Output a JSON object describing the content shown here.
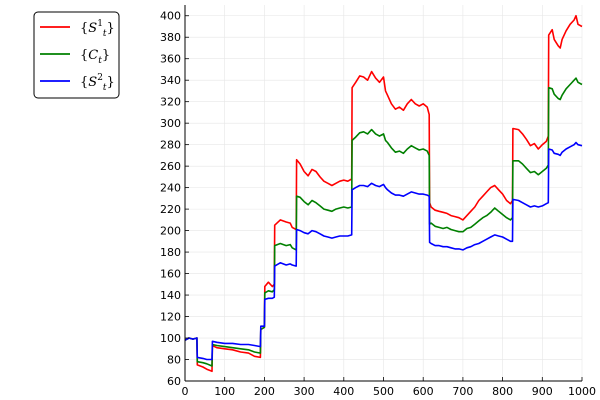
{
  "chart_data": {
    "type": "line",
    "title": "",
    "xlabel": "",
    "ylabel": "",
    "xlim": [
      0,
      1000
    ],
    "ylim": [
      60,
      410
    ],
    "xticks": [
      0,
      100,
      200,
      300,
      400,
      500,
      600,
      700,
      800,
      900,
      1000
    ],
    "yticks": [
      60,
      80,
      100,
      120,
      140,
      160,
      180,
      200,
      220,
      240,
      260,
      280,
      300,
      320,
      340,
      360,
      380,
      400
    ],
    "grid": true,
    "legend_position": "outside top-left",
    "series": [
      {
        "name": "{S_t^1}",
        "color": "#ff0000",
        "points": [
          [
            0,
            98
          ],
          [
            10,
            100
          ],
          [
            20,
            99
          ],
          [
            30,
            100
          ],
          [
            31,
            75
          ],
          [
            45,
            73
          ],
          [
            55,
            71
          ],
          [
            68,
            69
          ],
          [
            69,
            93
          ],
          [
            80,
            91
          ],
          [
            100,
            90
          ],
          [
            120,
            89
          ],
          [
            140,
            87
          ],
          [
            160,
            86
          ],
          [
            175,
            83
          ],
          [
            190,
            82
          ],
          [
            191,
            108
          ],
          [
            200,
            110
          ],
          [
            201,
            148
          ],
          [
            210,
            152
          ],
          [
            220,
            148
          ],
          [
            225,
            150
          ],
          [
            226,
            205
          ],
          [
            240,
            210
          ],
          [
            255,
            208
          ],
          [
            265,
            207
          ],
          [
            270,
            203
          ],
          [
            280,
            201
          ],
          [
            281,
            266
          ],
          [
            290,
            262
          ],
          [
            300,
            255
          ],
          [
            310,
            251
          ],
          [
            320,
            257
          ],
          [
            330,
            255
          ],
          [
            340,
            250
          ],
          [
            350,
            246
          ],
          [
            360,
            244
          ],
          [
            370,
            242
          ],
          [
            380,
            244
          ],
          [
            390,
            246
          ],
          [
            400,
            247
          ],
          [
            410,
            246
          ],
          [
            420,
            248
          ],
          [
            421,
            333
          ],
          [
            430,
            338
          ],
          [
            440,
            344
          ],
          [
            450,
            343
          ],
          [
            460,
            340
          ],
          [
            470,
            348
          ],
          [
            480,
            342
          ],
          [
            490,
            338
          ],
          [
            500,
            343
          ],
          [
            505,
            330
          ],
          [
            510,
            326
          ],
          [
            520,
            318
          ],
          [
            530,
            313
          ],
          [
            540,
            315
          ],
          [
            550,
            312
          ],
          [
            560,
            318
          ],
          [
            570,
            322
          ],
          [
            580,
            318
          ],
          [
            590,
            316
          ],
          [
            600,
            318
          ],
          [
            610,
            315
          ],
          [
            615,
            308
          ],
          [
            616,
            226
          ],
          [
            620,
            222
          ],
          [
            630,
            219
          ],
          [
            640,
            218
          ],
          [
            650,
            217
          ],
          [
            660,
            216
          ],
          [
            670,
            214
          ],
          [
            680,
            213
          ],
          [
            690,
            212
          ],
          [
            700,
            210
          ],
          [
            710,
            214
          ],
          [
            720,
            218
          ],
          [
            730,
            222
          ],
          [
            740,
            228
          ],
          [
            750,
            232
          ],
          [
            760,
            236
          ],
          [
            770,
            240
          ],
          [
            780,
            242
          ],
          [
            790,
            238
          ],
          [
            800,
            234
          ],
          [
            810,
            228
          ],
          [
            820,
            225
          ],
          [
            825,
            228
          ],
          [
            826,
            295
          ],
          [
            840,
            294
          ],
          [
            850,
            290
          ],
          [
            860,
            285
          ],
          [
            870,
            279
          ],
          [
            880,
            281
          ],
          [
            890,
            276
          ],
          [
            900,
            280
          ],
          [
            910,
            283
          ],
          [
            915,
            288
          ],
          [
            916,
            382
          ],
          [
            925,
            387
          ],
          [
            930,
            378
          ],
          [
            940,
            372
          ],
          [
            945,
            370
          ],
          [
            950,
            378
          ],
          [
            960,
            386
          ],
          [
            970,
            392
          ],
          [
            980,
            396
          ],
          [
            985,
            400
          ],
          [
            990,
            392
          ],
          [
            1000,
            390
          ]
        ]
      },
      {
        "name": "{C_t}",
        "color": "#008000",
        "points": [
          [
            0,
            98
          ],
          [
            10,
            100
          ],
          [
            20,
            99
          ],
          [
            30,
            100
          ],
          [
            31,
            78
          ],
          [
            45,
            77
          ],
          [
            55,
            76
          ],
          [
            68,
            74
          ],
          [
            69,
            94
          ],
          [
            80,
            93
          ],
          [
            100,
            92
          ],
          [
            120,
            91
          ],
          [
            140,
            90
          ],
          [
            160,
            89
          ],
          [
            175,
            87
          ],
          [
            190,
            86
          ],
          [
            191,
            108
          ],
          [
            200,
            110
          ],
          [
            201,
            142
          ],
          [
            210,
            144
          ],
          [
            220,
            143
          ],
          [
            225,
            145
          ],
          [
            226,
            186
          ],
          [
            240,
            188
          ],
          [
            255,
            186
          ],
          [
            265,
            187
          ],
          [
            270,
            184
          ],
          [
            280,
            182
          ],
          [
            281,
            232
          ],
          [
            290,
            231
          ],
          [
            300,
            227
          ],
          [
            310,
            224
          ],
          [
            320,
            228
          ],
          [
            330,
            226
          ],
          [
            340,
            223
          ],
          [
            350,
            220
          ],
          [
            360,
            219
          ],
          [
            370,
            218
          ],
          [
            380,
            220
          ],
          [
            390,
            221
          ],
          [
            400,
            222
          ],
          [
            410,
            221
          ],
          [
            420,
            222
          ],
          [
            421,
            284
          ],
          [
            430,
            287
          ],
          [
            440,
            291
          ],
          [
            450,
            292
          ],
          [
            460,
            290
          ],
          [
            470,
            294
          ],
          [
            480,
            290
          ],
          [
            490,
            288
          ],
          [
            500,
            290
          ],
          [
            505,
            284
          ],
          [
            510,
            282
          ],
          [
            520,
            277
          ],
          [
            530,
            273
          ],
          [
            540,
            274
          ],
          [
            550,
            272
          ],
          [
            560,
            276
          ],
          [
            570,
            279
          ],
          [
            580,
            277
          ],
          [
            590,
            275
          ],
          [
            600,
            276
          ],
          [
            610,
            274
          ],
          [
            615,
            270
          ],
          [
            616,
            206
          ],
          [
            620,
            207
          ],
          [
            630,
            204
          ],
          [
            640,
            203
          ],
          [
            650,
            202
          ],
          [
            660,
            203
          ],
          [
            670,
            201
          ],
          [
            680,
            200
          ],
          [
            690,
            199
          ],
          [
            700,
            199
          ],
          [
            710,
            202
          ],
          [
            720,
            203
          ],
          [
            730,
            206
          ],
          [
            740,
            209
          ],
          [
            750,
            212
          ],
          [
            760,
            214
          ],
          [
            770,
            217
          ],
          [
            780,
            221
          ],
          [
            790,
            218
          ],
          [
            800,
            215
          ],
          [
            810,
            212
          ],
          [
            820,
            210
          ],
          [
            825,
            212
          ],
          [
            826,
            265
          ],
          [
            840,
            265
          ],
          [
            850,
            262
          ],
          [
            860,
            258
          ],
          [
            870,
            254
          ],
          [
            880,
            255
          ],
          [
            890,
            252
          ],
          [
            900,
            255
          ],
          [
            910,
            258
          ],
          [
            915,
            261
          ],
          [
            916,
            333
          ],
          [
            925,
            332
          ],
          [
            930,
            327
          ],
          [
            940,
            323
          ],
          [
            945,
            322
          ],
          [
            950,
            326
          ],
          [
            960,
            332
          ],
          [
            970,
            336
          ],
          [
            980,
            340
          ],
          [
            985,
            342
          ],
          [
            990,
            338
          ],
          [
            1000,
            336
          ]
        ]
      },
      {
        "name": "{S_t^2}",
        "color": "#0000ff",
        "points": [
          [
            0,
            98
          ],
          [
            10,
            100
          ],
          [
            20,
            99
          ],
          [
            30,
            100
          ],
          [
            31,
            82
          ],
          [
            45,
            81
          ],
          [
            55,
            80
          ],
          [
            68,
            80
          ],
          [
            69,
            97
          ],
          [
            80,
            96
          ],
          [
            100,
            95
          ],
          [
            120,
            95
          ],
          [
            140,
            94
          ],
          [
            160,
            94
          ],
          [
            175,
            93
          ],
          [
            190,
            92
          ],
          [
            191,
            111
          ],
          [
            200,
            111
          ],
          [
            201,
            136
          ],
          [
            210,
            137
          ],
          [
            220,
            137
          ],
          [
            225,
            138
          ],
          [
            226,
            167
          ],
          [
            240,
            170
          ],
          [
            255,
            168
          ],
          [
            265,
            169
          ],
          [
            270,
            168
          ],
          [
            280,
            167
          ],
          [
            281,
            201
          ],
          [
            290,
            200
          ],
          [
            300,
            198
          ],
          [
            310,
            197
          ],
          [
            320,
            200
          ],
          [
            330,
            199
          ],
          [
            340,
            197
          ],
          [
            350,
            195
          ],
          [
            360,
            194
          ],
          [
            370,
            193
          ],
          [
            380,
            194
          ],
          [
            390,
            195
          ],
          [
            400,
            195
          ],
          [
            410,
            195
          ],
          [
            420,
            196
          ],
          [
            421,
            238
          ],
          [
            430,
            240
          ],
          [
            440,
            242
          ],
          [
            450,
            242
          ],
          [
            460,
            241
          ],
          [
            470,
            244
          ],
          [
            480,
            242
          ],
          [
            490,
            241
          ],
          [
            500,
            243
          ],
          [
            505,
            240
          ],
          [
            510,
            238
          ],
          [
            520,
            235
          ],
          [
            530,
            233
          ],
          [
            540,
            233
          ],
          [
            550,
            232
          ],
          [
            560,
            234
          ],
          [
            570,
            236
          ],
          [
            580,
            235
          ],
          [
            590,
            234
          ],
          [
            600,
            234
          ],
          [
            610,
            233
          ],
          [
            615,
            232
          ],
          [
            616,
            189
          ],
          [
            620,
            188
          ],
          [
            630,
            186
          ],
          [
            640,
            186
          ],
          [
            650,
            185
          ],
          [
            660,
            185
          ],
          [
            670,
            184
          ],
          [
            680,
            183
          ],
          [
            690,
            183
          ],
          [
            700,
            182
          ],
          [
            710,
            184
          ],
          [
            720,
            185
          ],
          [
            730,
            187
          ],
          [
            740,
            188
          ],
          [
            750,
            190
          ],
          [
            760,
            192
          ],
          [
            770,
            194
          ],
          [
            780,
            196
          ],
          [
            790,
            195
          ],
          [
            800,
            194
          ],
          [
            810,
            192
          ],
          [
            820,
            190
          ],
          [
            825,
            190
          ],
          [
            826,
            229
          ],
          [
            840,
            228
          ],
          [
            850,
            226
          ],
          [
            860,
            224
          ],
          [
            870,
            222
          ],
          [
            880,
            223
          ],
          [
            890,
            222
          ],
          [
            900,
            223
          ],
          [
            910,
            225
          ],
          [
            915,
            226
          ],
          [
            916,
            276
          ],
          [
            925,
            275
          ],
          [
            930,
            272
          ],
          [
            940,
            271
          ],
          [
            945,
            270
          ],
          [
            950,
            273
          ],
          [
            960,
            276
          ],
          [
            970,
            278
          ],
          [
            980,
            280
          ],
          [
            985,
            282
          ],
          [
            990,
            280
          ],
          [
            1000,
            279
          ]
        ]
      }
    ]
  }
}
